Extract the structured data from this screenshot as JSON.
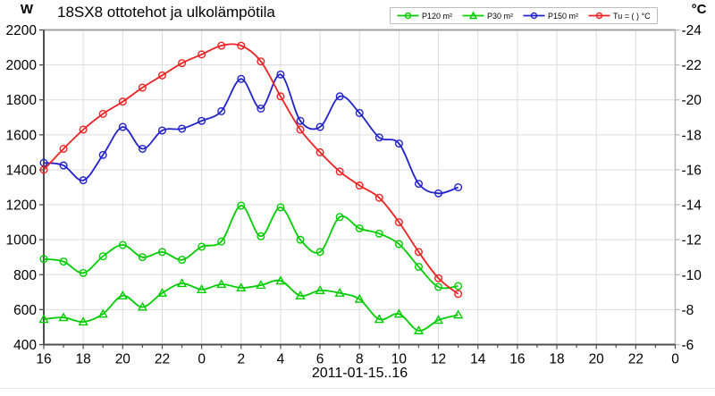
{
  "chart_data": {
    "type": "line",
    "title": "18SX8 ottotehot ja ulkolämpötila",
    "left_axis": {
      "unit": "W",
      "min": 400,
      "max": 2200,
      "tick_step": 200,
      "tick_labels": [
        "2200",
        "2000",
        "1800",
        "1600",
        "1400",
        "1200",
        "1000",
        "800",
        "600",
        "400"
      ]
    },
    "right_axis": {
      "unit": "°C",
      "top": -24,
      "bottom": -6,
      "tick_labels": [
        "-24",
        "-22",
        "-20",
        "-18",
        "-16",
        "-14",
        "-12",
        "-10",
        "-8",
        "-6"
      ]
    },
    "x_axis": {
      "label": "2011-01-15..16",
      "hours_span": 32,
      "tick_labels": [
        "16",
        "18",
        "20",
        "22",
        "0",
        "2",
        "4",
        "6",
        "8",
        "10",
        "12",
        "14",
        "16",
        "18",
        "20",
        "22",
        "0"
      ],
      "grid": true
    },
    "point_hours": [
      "16",
      "17",
      "18",
      "19",
      "20",
      "21",
      "22",
      "23",
      "0",
      "1",
      "2",
      "3",
      "4",
      "5",
      "6",
      "7",
      "8",
      "9",
      "10",
      "11",
      "12",
      "13"
    ],
    "series": [
      {
        "name": "P120 m²",
        "color": "#00cc00",
        "marker": "circle",
        "axis": "left",
        "values": [
          890,
          875,
          810,
          905,
          970,
          900,
          930,
          885,
          960,
          990,
          1195,
          1020,
          1185,
          1000,
          930,
          1130,
          1065,
          1035,
          975,
          845,
          730,
          735
        ]
      },
      {
        "name": "P30 m²",
        "color": "#00cc00",
        "marker": "triangle",
        "axis": "left",
        "values": [
          545,
          555,
          530,
          575,
          680,
          615,
          695,
          750,
          715,
          745,
          725,
          740,
          765,
          680,
          710,
          695,
          660,
          545,
          575,
          480,
          540,
          570
        ]
      },
      {
        "name": "P150 m²",
        "color": "#2222cc",
        "marker": "circle",
        "axis": "left",
        "values": [
          1440,
          1425,
          1340,
          1485,
          1645,
          1520,
          1625,
          1635,
          1680,
          1735,
          1920,
          1750,
          1945,
          1680,
          1645,
          1820,
          1725,
          1585,
          1550,
          1320,
          1265,
          1300
        ]
      },
      {
        "name": "Tu = ( ) °C",
        "color": "#ee2222",
        "marker": "circle",
        "axis": "right",
        "values": [
          -16,
          -17.2,
          -18.3,
          -19.2,
          -19.9,
          -20.7,
          -21.4,
          -22.1,
          -22.6,
          -23.1,
          -23.1,
          -22.2,
          -20.2,
          -18.3,
          -17,
          -15.9,
          -15.1,
          -14.4,
          -13,
          -11.3,
          -9.8,
          -8.9
        ]
      }
    ],
    "style": {
      "grid_color": "#dcdcdc",
      "axis_dark": "#4e4e4e",
      "axis_top": "#a2a2a2",
      "axis_right": "#b8b8b8",
      "legend_position": "top-center"
    }
  }
}
